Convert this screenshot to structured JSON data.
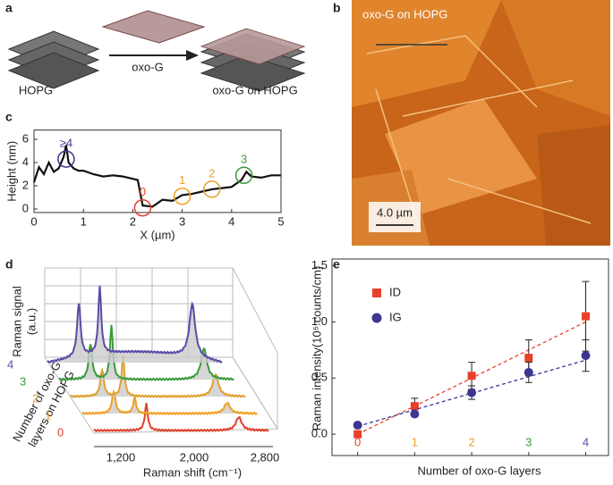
{
  "panel_labels": [
    "a",
    "b",
    "c",
    "d",
    "e"
  ],
  "panel_a": {
    "left": "HOPG",
    "arrow": "oxo-G",
    "right": "oxo-G on HOPG"
  },
  "panel_b": {
    "caption": "oxo-G on HOPG",
    "scale_bar": "4.0 µm"
  },
  "panel_d": {
    "y_label": [
      "Raman signal",
      "(a.u.)"
    ],
    "z_label": [
      "Number of oxo-G",
      "layers on HOPG"
    ],
    "layers": [
      "0",
      "1",
      "2",
      "3",
      "4"
    ],
    "layer_colors": [
      "#e0402a",
      "#f0a020",
      "#e0a030",
      "#3a9a3a",
      "#5a4aa8"
    ],
    "x_ticks": [
      "1,200",
      "2,000",
      "2,800"
    ],
    "x_label": "Raman shift (cm⁻¹)"
  },
  "chart_data": [
    {
      "type": "line",
      "x_label": "X (µm)",
      "y_label": "Height (nm)",
      "color": "#111111",
      "x": [
        0,
        0.1,
        0.2,
        0.3,
        0.4,
        0.5,
        0.6,
        0.65,
        0.7,
        0.8,
        0.9,
        1.0,
        1.2,
        1.4,
        1.6,
        1.8,
        2.0,
        2.1,
        2.2,
        2.4,
        2.6,
        2.8,
        3.0,
        3.2,
        3.4,
        3.6,
        3.8,
        4.0,
        4.2,
        4.3,
        4.4,
        4.6,
        4.8,
        5.0
      ],
      "values": [
        2.3,
        3.6,
        3.0,
        4.0,
        3.2,
        3.5,
        4.5,
        5.5,
        4.0,
        3.5,
        3.3,
        3.3,
        3.0,
        2.8,
        2.9,
        2.8,
        2.6,
        2.5,
        0.3,
        0.2,
        0.8,
        0.7,
        1.2,
        1.3,
        1.5,
        1.7,
        1.8,
        1.9,
        2.5,
        3.2,
        2.8,
        2.7,
        2.9,
        2.9
      ],
      "xlim": [
        0,
        5
      ],
      "ylim": [
        -0.3,
        6.8
      ],
      "xticks": [
        0,
        1,
        2,
        3,
        4,
        5
      ],
      "yticks": [
        0,
        2,
        4,
        6
      ],
      "annotations": [
        {
          "text": "≥4",
          "x": 0.65,
          "y": 4.3,
          "color": "#3c3592"
        },
        {
          "text": "0",
          "x": 2.2,
          "y": 0.1,
          "color": "#e0402a"
        },
        {
          "text": "1",
          "x": 3.0,
          "y": 1.1,
          "color": "#f0a020"
        },
        {
          "text": "2",
          "x": 3.6,
          "y": 1.7,
          "color": "#e0a030"
        },
        {
          "text": "3",
          "x": 4.25,
          "y": 2.9,
          "color": "#3a9a3a"
        }
      ]
    },
    {
      "type": "scatter",
      "x_label": "Number of oxo-G layers",
      "y_label": "Raman intensity(10⁵ counts/cm)",
      "x": [
        0,
        1,
        2,
        3,
        4
      ],
      "xtick_colors": [
        "#e0402a",
        "#f0a020",
        "#e0a030",
        "#3a9a3a",
        "#5a4aa8"
      ],
      "xlim": [
        -0.45,
        4.4
      ],
      "ylim": [
        -0.19,
        1.56
      ],
      "xticks": [
        0,
        1,
        2,
        3,
        4
      ],
      "yticks": [
        {
          "value": 0,
          "label": "0.0"
        },
        {
          "value": 0.5,
          "label": "0.5"
        },
        {
          "value": 1,
          "label": "1.0"
        },
        {
          "value": 1.5,
          "label": "1.5"
        }
      ],
      "legend": "upper left",
      "series": [
        {
          "name": "ID",
          "color": "#e8402a",
          "marker": "square",
          "values": [
            0,
            0.25,
            0.52,
            0.68,
            1.05
          ],
          "errors": [
            0,
            0.07,
            0.12,
            0.16,
            0.31
          ],
          "fit": [
            0,
            1.0
          ]
        },
        {
          "name": "IG",
          "color": "#3c3592",
          "marker": "circle",
          "values": [
            0.08,
            0.18,
            0.37,
            0.55,
            0.7
          ],
          "errors": [
            0,
            0,
            0.06,
            0.09,
            0.14
          ],
          "fit": [
            0.07,
            0.66
          ]
        }
      ]
    }
  ]
}
